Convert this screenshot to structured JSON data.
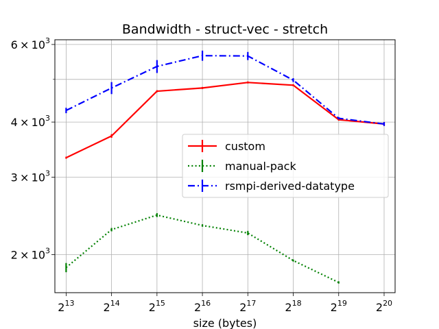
{
  "chart_data": {
    "type": "line",
    "title": "Bandwidth - struct-vec - stretch",
    "xlabel": "size (bytes)",
    "ylabel": "",
    "x_scale": "log2",
    "y_scale": "log",
    "x": [
      8192,
      16384,
      32768,
      65536,
      131072,
      262144,
      524288,
      1048576
    ],
    "x_tick_labels": [
      {
        "base": "2",
        "exp": "13"
      },
      {
        "base": "2",
        "exp": "14"
      },
      {
        "base": "2",
        "exp": "15"
      },
      {
        "base": "2",
        "exp": "16"
      },
      {
        "base": "2",
        "exp": "17"
      },
      {
        "base": "2",
        "exp": "18"
      },
      {
        "base": "2",
        "exp": "19"
      },
      {
        "base": "2",
        "exp": "20"
      }
    ],
    "y_ticks": [
      {
        "value": 2000,
        "mant": "2",
        "base": "10",
        "exp": "3"
      },
      {
        "value": 3000,
        "mant": "3",
        "base": "10",
        "exp": "3"
      },
      {
        "value": 4000,
        "mant": "4",
        "base": "10",
        "exp": "3"
      },
      {
        "value": 6000,
        "mant": "6",
        "base": "10",
        "exp": "3"
      }
    ],
    "y_minor_gridlines": [
      5000
    ],
    "xlim": [
      6900,
      1240000
    ],
    "ylim": [
      1640,
      6150
    ],
    "grid": true,
    "legend_position": "center-right",
    "series": [
      {
        "name": "custom",
        "color": "#ff0000",
        "linestyle": "solid",
        "values": [
          3320,
          3720,
          4700,
          4780,
          4920,
          4850,
          4050,
          3960
        ],
        "errors": [
          15,
          35,
          20,
          15,
          20,
          15,
          20,
          40
        ]
      },
      {
        "name": "manual-pack",
        "color": "#008000",
        "linestyle": "dotted",
        "values": [
          1870,
          2280,
          2460,
          2330,
          2240,
          1940,
          1730,
          null
        ],
        "errors": [
          45,
          20,
          25,
          15,
          25,
          10,
          10,
          null
        ]
      },
      {
        "name": "rsmpi-derived-datatype",
        "color": "#0000ff",
        "linestyle": "dashdot",
        "values": [
          4250,
          4780,
          5350,
          5660,
          5650,
          4980,
          4080,
          3960
        ],
        "errors": [
          60,
          150,
          180,
          150,
          120,
          50,
          25,
          40
        ]
      }
    ]
  }
}
